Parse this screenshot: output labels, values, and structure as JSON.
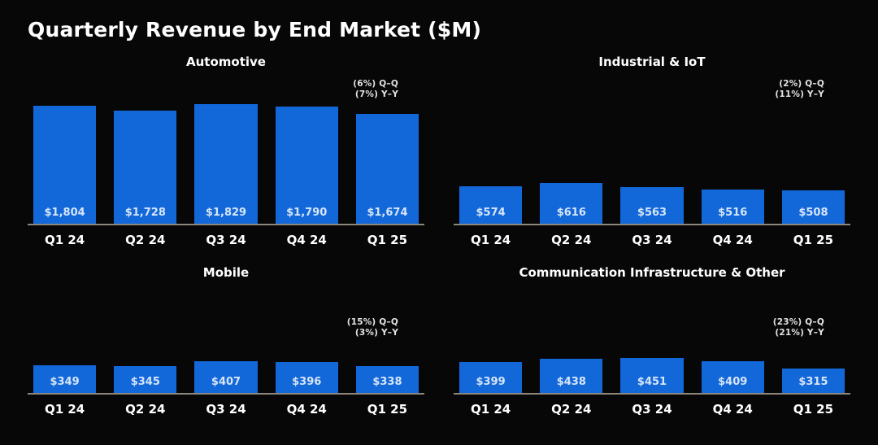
{
  "page_title": "Quarterly Revenue by End Market ($M)",
  "colors": {
    "background": "#070707",
    "bar": "#1268D9",
    "axis_line": "#8D877B",
    "value_label": "#D7E5F8",
    "text": "#FFFFFF",
    "annotation": "#E3E3E3"
  },
  "chart_data": [
    {
      "type": "bar",
      "title": "Automotive",
      "categories": [
        "Q1 24",
        "Q2 24",
        "Q3 24",
        "Q4 24",
        "Q1 25"
      ],
      "values": [
        1804,
        1728,
        1829,
        1790,
        1674
      ],
      "value_labels": [
        "$1,804",
        "$1,728",
        "$1,829",
        "$1,790",
        "$1,674"
      ],
      "annotations": [
        "(6%) Q–Q",
        "(7%) Y–Y"
      ],
      "ylim": [
        0,
        2300
      ],
      "grid": false,
      "legend": "none"
    },
    {
      "type": "bar",
      "title": "Industrial & IoT",
      "categories": [
        "Q1 24",
        "Q2 24",
        "Q3 24",
        "Q4 24",
        "Q1 25"
      ],
      "values": [
        574,
        616,
        563,
        516,
        508
      ],
      "value_labels": [
        "$574",
        "$616",
        "$563",
        "$516",
        "$508"
      ],
      "annotations": [
        "(2%) Q–Q",
        "(11%) Y–Y"
      ],
      "ylim": [
        0,
        2300
      ],
      "grid": false,
      "legend": "none"
    },
    {
      "type": "bar",
      "title": "Mobile",
      "categories": [
        "Q1 24",
        "Q2 24",
        "Q3 24",
        "Q4 24",
        "Q1 25"
      ],
      "values": [
        349,
        345,
        407,
        396,
        338
      ],
      "value_labels": [
        "$349",
        "$345",
        "$407",
        "$396",
        "$338"
      ],
      "annotations": [
        "(15%) Q–Q",
        "(3%) Y–Y"
      ],
      "ylim": [
        0,
        1300
      ],
      "grid": false,
      "legend": "none"
    },
    {
      "type": "bar",
      "title": "Communication Infrastructure & Other",
      "categories": [
        "Q1 24",
        "Q2 24",
        "Q3 24",
        "Q4 24",
        "Q1 25"
      ],
      "values": [
        399,
        438,
        451,
        409,
        315
      ],
      "value_labels": [
        "$399",
        "$438",
        "$451",
        "$409",
        "$315"
      ],
      "annotations": [
        "(23%) Q–Q",
        "(21%) Y–Y"
      ],
      "ylim": [
        0,
        1300
      ],
      "grid": false,
      "legend": "none"
    }
  ]
}
